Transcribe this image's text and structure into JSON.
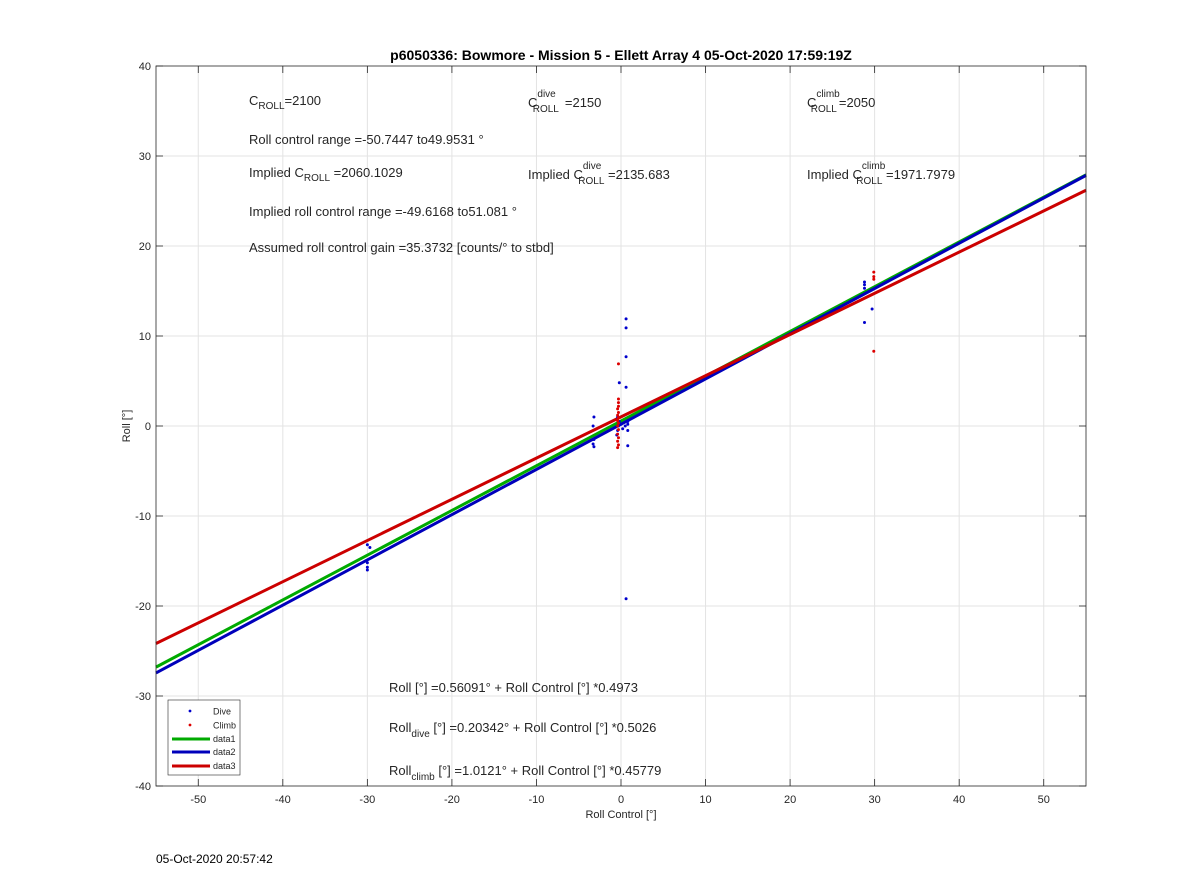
{
  "chart_data": {
    "type": "scatter",
    "title": "p6050336: Bowmore - Mission 5 - Ellett Array 4 05-Oct-2020 17:59:19Z",
    "xlabel": "Roll Control [°]",
    "ylabel": "Roll [°]",
    "xlim": [
      -55,
      55
    ],
    "ylim": [
      -40,
      40
    ],
    "xticks": [
      -50,
      -40,
      -30,
      -20,
      -10,
      0,
      10,
      20,
      30,
      40,
      50
    ],
    "yticks": [
      -40,
      -30,
      -20,
      -10,
      0,
      10,
      20,
      30,
      40
    ],
    "grid": true,
    "legend_position": "bottom-left",
    "series": [
      {
        "name": "Dive",
        "kind": "points",
        "color": "#0000cc",
        "points": [
          [
            -30.0,
            -13.2
          ],
          [
            -29.7,
            -13.5
          ],
          [
            -30.0,
            -15.2
          ],
          [
            -30.0,
            -15.7
          ],
          [
            -30.0,
            -16.0
          ],
          [
            -3.2,
            1.0
          ],
          [
            -3.3,
            0.0
          ],
          [
            -3.2,
            -1.5
          ],
          [
            -3.3,
            -2.0
          ],
          [
            -3.2,
            -2.3
          ],
          [
            -0.3,
            0.0
          ],
          [
            -0.4,
            -0.5
          ],
          [
            -0.2,
            0.5
          ],
          [
            -0.5,
            -1.0
          ],
          [
            0.0,
            0.2
          ],
          [
            0.2,
            -0.3
          ],
          [
            0.5,
            0.0
          ],
          [
            -0.4,
            1.0
          ],
          [
            -0.2,
            4.8
          ],
          [
            0.6,
            11.9
          ],
          [
            0.6,
            10.9
          ],
          [
            0.6,
            7.7
          ],
          [
            0.6,
            4.3
          ],
          [
            0.8,
            0.5
          ],
          [
            0.8,
            -0.5
          ],
          [
            0.8,
            -2.2
          ],
          [
            0.8,
            0.2
          ],
          [
            0.6,
            -19.2
          ],
          [
            28.8,
            15.3
          ],
          [
            28.8,
            15.7
          ],
          [
            28.8,
            16.0
          ],
          [
            28.8,
            11.5
          ],
          [
            29.7,
            13.0
          ]
        ]
      },
      {
        "name": "Climb",
        "kind": "points",
        "color": "#dd0000",
        "points": [
          [
            -0.3,
            6.9
          ],
          [
            -0.3,
            3.0
          ],
          [
            -0.3,
            2.6
          ],
          [
            -0.3,
            2.2
          ],
          [
            -0.4,
            1.9
          ],
          [
            -0.3,
            1.5
          ],
          [
            -0.4,
            1.2
          ],
          [
            -0.3,
            0.9
          ],
          [
            -0.4,
            0.6
          ],
          [
            -0.3,
            0.3
          ],
          [
            -0.4,
            0.0
          ],
          [
            -0.3,
            -0.4
          ],
          [
            -0.4,
            -0.9
          ],
          [
            -0.3,
            -1.3
          ],
          [
            -0.4,
            -1.7
          ],
          [
            -0.3,
            -2.1
          ],
          [
            -0.4,
            -2.4
          ],
          [
            29.9,
            17.1
          ],
          [
            29.9,
            16.6
          ],
          [
            29.9,
            16.3
          ],
          [
            29.9,
            8.3
          ]
        ]
      },
      {
        "name": "data1",
        "kind": "line",
        "color": "#00aa00",
        "intercept": 0.56091,
        "slope": 0.4973
      },
      {
        "name": "data2",
        "kind": "line",
        "color": "#0000bb",
        "intercept": 0.20342,
        "slope": 0.5026
      },
      {
        "name": "data3",
        "kind": "line",
        "color": "#cc0000",
        "intercept": 1.0121,
        "slope": 0.45779
      }
    ]
  },
  "annotations": {
    "c_roll": {
      "base": "C",
      "sub": "ROLL",
      "value": "=2100"
    },
    "c_roll_dive": {
      "base": "C",
      "sub": "ROLL",
      "sup": "dive",
      "value": "=2150"
    },
    "c_roll_climb": {
      "base": "C",
      "sub": "ROLL",
      "sup": "climb",
      "value": "=2050"
    },
    "roll_control_range": "Roll control range =-50.7447 to49.9531 °",
    "implied_c_roll": {
      "prefix": "Implied C",
      "sub": "ROLL",
      "value": " =2060.1029"
    },
    "implied_c_roll_dive": {
      "prefix": "Implied C",
      "sub": "ROLL",
      "sup": "dive",
      "value": " =2135.683"
    },
    "implied_c_roll_climb": {
      "prefix": "Implied C",
      "sub": "ROLL",
      "sup": "climb",
      "value": " =1971.7979"
    },
    "implied_roll_control_range": "Implied roll control range =-49.6168 to51.081 °",
    "assumed_gain": "Assumed roll control gain =35.3732 [counts/° to stbd]",
    "fit_all": "Roll [°] =0.56091° + Roll Control [°] *0.4973",
    "fit_dive": {
      "base": "Roll",
      "sub": "dive",
      "rest": " [°] =0.20342° + Roll Control [°] *0.5026"
    },
    "fit_climb": {
      "base": "Roll",
      "sub": "climb",
      "rest": " [°] =1.0121° + Roll Control [°] *0.45779"
    }
  },
  "footer_timestamp": "05-Oct-2020 20:57:42"
}
